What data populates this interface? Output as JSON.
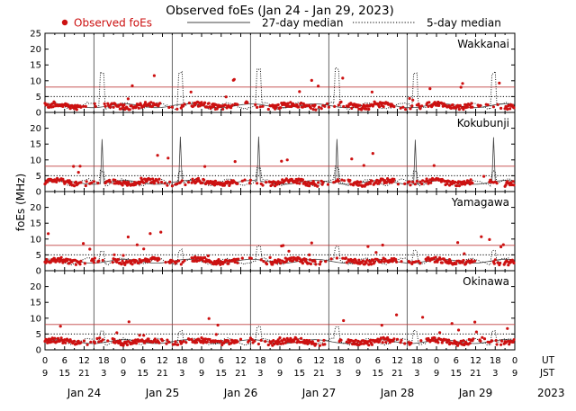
{
  "chart_data": {
    "type": "scatter",
    "title": "Observed foEs (Jan 24 - Jan 29, 2023)",
    "ylabel": "foEs (MHz)",
    "ylim": [
      0,
      25
    ],
    "yticks": [
      0,
      5,
      10,
      15,
      20,
      25
    ],
    "legend": {
      "observed": "Observed foEs",
      "median27": "27-day median",
      "median5": "5-day median"
    },
    "days": [
      "Jan 24",
      "Jan 25",
      "Jan 26",
      "Jan 27",
      "Jan 28",
      "Jan 29"
    ],
    "ut_ticks": [
      "0",
      "6",
      "12",
      "18",
      "0",
      "6",
      "12",
      "18",
      "0",
      "6",
      "12",
      "18",
      "0",
      "6",
      "12",
      "18",
      "0",
      "6",
      "12",
      "18",
      "0",
      "6",
      "12",
      "18",
      "0"
    ],
    "jst_ticks": [
      "9",
      "15",
      "21",
      "3",
      "9",
      "15",
      "21",
      "3",
      "9",
      "15",
      "21",
      "3",
      "9",
      "15",
      "21",
      "3",
      "9",
      "15",
      "21",
      "3",
      "9",
      "15",
      "21",
      "3",
      "9"
    ],
    "ut_label": "UT",
    "jst_label": "JST",
    "year": "2023",
    "stations": [
      {
        "name": "Wakkanai",
        "ref_red": 8.0,
        "ref_dotted": 5.0
      },
      {
        "name": "Kokubunji",
        "ref_red": 8.0,
        "ref_dotted": 5.0
      },
      {
        "name": "Yamagawa",
        "ref_red": 8.0,
        "ref_dotted": 5.0
      },
      {
        "name": "Okinawa",
        "ref_red": 8.0,
        "ref_dotted": 5.0
      }
    ]
  },
  "colors": {
    "observed": "#cc1111",
    "median27": "#444444",
    "median5": "#000000",
    "ref_red": "#c04040"
  }
}
